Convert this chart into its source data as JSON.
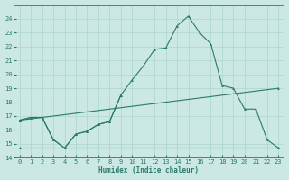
{
  "background_color": "#cce8e4",
  "grid_color": "#b0d8d0",
  "line_color": "#2a7a6a",
  "xlabel": "Humidex (Indice chaleur)",
  "ylim": [
    14,
    25
  ],
  "xlim": [
    -0.5,
    23.5
  ],
  "yticks": [
    14,
    15,
    16,
    17,
    18,
    19,
    20,
    21,
    22,
    23,
    24
  ],
  "xticks": [
    0,
    1,
    2,
    3,
    4,
    5,
    6,
    7,
    8,
    9,
    10,
    11,
    12,
    13,
    14,
    15,
    16,
    17,
    18,
    19,
    20,
    21,
    22,
    23
  ],
  "line1_x": [
    0,
    1,
    2,
    3,
    4,
    5,
    6,
    7,
    8,
    9,
    10,
    11,
    12,
    13,
    14,
    15,
    16,
    17,
    18,
    19,
    20,
    21,
    22,
    23
  ],
  "line1_y": [
    16.7,
    16.9,
    16.9,
    15.3,
    14.7,
    15.7,
    15.9,
    16.4,
    16.6,
    18.5,
    19.6,
    20.6,
    21.8,
    21.9,
    23.5,
    24.2,
    23.0,
    22.2,
    19.2,
    19.0,
    17.5,
    17.5,
    15.3,
    14.7
  ],
  "line2_x": [
    0,
    1,
    2,
    3,
    4,
    5,
    6,
    7,
    8,
    9
  ],
  "line2_y": [
    16.7,
    16.9,
    16.9,
    15.3,
    14.7,
    15.7,
    15.9,
    16.4,
    16.6,
    18.5
  ],
  "line3_x": [
    0,
    23
  ],
  "line3_y": [
    16.7,
    19.0
  ],
  "line4_x": [
    0,
    23
  ],
  "line4_y": [
    14.7,
    14.7
  ]
}
